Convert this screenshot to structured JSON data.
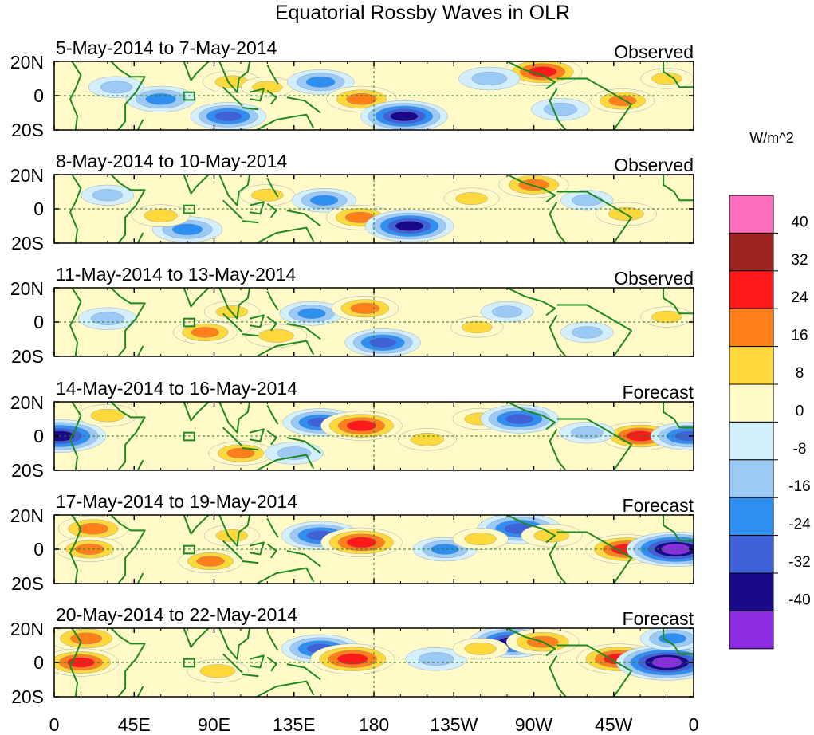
{
  "chart_data": {
    "type": "heatmap",
    "title": "Equatorial Rossby Waves in OLR",
    "variable": "OLR anomaly",
    "units": "W/m^2",
    "x_ticks": [
      "0",
      "45E",
      "90E",
      "135E",
      "180",
      "135W",
      "90W",
      "45W",
      "0"
    ],
    "y_ticks": [
      "20N",
      "0",
      "20S"
    ],
    "lon_range": [
      0,
      360
    ],
    "lat_range": [
      -20,
      20
    ],
    "colorbar": {
      "levels": [
        -40,
        -32,
        -24,
        -16,
        -8,
        0,
        8,
        16,
        24,
        32,
        40
      ],
      "labels": [
        "40",
        "32",
        "24",
        "16",
        "8",
        "0",
        "-8",
        "-16",
        "-24",
        "-32",
        "-40"
      ],
      "colors": [
        "#8b2be2",
        "#1a0a8a",
        "#3f62d8",
        "#2f8ff0",
        "#9ccaf5",
        "#d4effc",
        "#fffac8",
        "#ffd83b",
        "#ff7f1a",
        "#ff1a1a",
        "#9c2420",
        "#ff6fc0"
      ]
    },
    "panels": [
      {
        "period": "5-May-2014 to 7-May-2014",
        "kind": "Observed",
        "features": [
          {
            "lon": 60,
            "lat": -2,
            "value": -22
          },
          {
            "lon": 35,
            "lat": 5,
            "value": -12
          },
          {
            "lon": 100,
            "lat": 8,
            "value": 14
          },
          {
            "lon": 120,
            "lat": 5,
            "value": 10
          },
          {
            "lon": 98,
            "lat": -12,
            "value": -26
          },
          {
            "lon": 150,
            "lat": 8,
            "value": -20
          },
          {
            "lon": 173,
            "lat": -2,
            "value": 22
          },
          {
            "lon": 197,
            "lat": -12,
            "value": -34
          },
          {
            "lon": 275,
            "lat": 14,
            "value": 28
          },
          {
            "lon": 245,
            "lat": 10,
            "value": -16
          },
          {
            "lon": 320,
            "lat": -3,
            "value": 18
          },
          {
            "lon": 285,
            "lat": -8,
            "value": -14
          },
          {
            "lon": 345,
            "lat": 10,
            "value": 10
          }
        ]
      },
      {
        "period": "8-May-2014 to 10-May-2014",
        "kind": "Observed",
        "features": [
          {
            "lon": 75,
            "lat": -12,
            "value": -22
          },
          {
            "lon": 60,
            "lat": -4,
            "value": 14
          },
          {
            "lon": 120,
            "lat": 8,
            "value": 12
          },
          {
            "lon": 152,
            "lat": 5,
            "value": -18
          },
          {
            "lon": 172,
            "lat": -5,
            "value": 20
          },
          {
            "lon": 200,
            "lat": -10,
            "value": -35
          },
          {
            "lon": 270,
            "lat": 14,
            "value": 22
          },
          {
            "lon": 300,
            "lat": 5,
            "value": -10
          },
          {
            "lon": 322,
            "lat": -3,
            "value": 16
          },
          {
            "lon": 30,
            "lat": 8,
            "value": -10
          },
          {
            "lon": 235,
            "lat": 6,
            "value": 12
          }
        ]
      },
      {
        "period": "11-May-2014 to 13-May-2014",
        "kind": "Observed",
        "features": [
          {
            "lon": 85,
            "lat": -6,
            "value": 18
          },
          {
            "lon": 100,
            "lat": 6,
            "value": 12
          },
          {
            "lon": 125,
            "lat": -8,
            "value": 16
          },
          {
            "lon": 145,
            "lat": 5,
            "value": -18
          },
          {
            "lon": 175,
            "lat": 8,
            "value": 20
          },
          {
            "lon": 185,
            "lat": -12,
            "value": -26
          },
          {
            "lon": 30,
            "lat": 2,
            "value": -14
          },
          {
            "lon": 238,
            "lat": -3,
            "value": 10
          },
          {
            "lon": 255,
            "lat": 6,
            "value": -10
          },
          {
            "lon": 300,
            "lat": -6,
            "value": -10
          },
          {
            "lon": 345,
            "lat": 3,
            "value": 10
          }
        ]
      },
      {
        "period": "14-May-2014 to 16-May-2014",
        "kind": "Forecast",
        "features": [
          {
            "lon": 3,
            "lat": 0,
            "value": -38
          },
          {
            "lon": 30,
            "lat": 12,
            "value": 14
          },
          {
            "lon": 150,
            "lat": 8,
            "value": -26
          },
          {
            "lon": 173,
            "lat": 6,
            "value": 30
          },
          {
            "lon": 105,
            "lat": -10,
            "value": 18
          },
          {
            "lon": 135,
            "lat": -10,
            "value": -14
          },
          {
            "lon": 240,
            "lat": 10,
            "value": 12
          },
          {
            "lon": 262,
            "lat": 10,
            "value": -28
          },
          {
            "lon": 330,
            "lat": 0,
            "value": 28
          },
          {
            "lon": 357,
            "lat": 0,
            "value": -26
          },
          {
            "lon": 210,
            "lat": -2,
            "value": 14
          },
          {
            "lon": 300,
            "lat": 2,
            "value": -12
          }
        ]
      },
      {
        "period": "17-May-2014 to 19-May-2014",
        "kind": "Forecast",
        "features": [
          {
            "lon": 22,
            "lat": 12,
            "value": 22
          },
          {
            "lon": 20,
            "lat": 0,
            "value": 20
          },
          {
            "lon": 88,
            "lat": -7,
            "value": 18
          },
          {
            "lon": 150,
            "lat": 8,
            "value": -28
          },
          {
            "lon": 173,
            "lat": 4,
            "value": 30
          },
          {
            "lon": 220,
            "lat": 0,
            "value": -18
          },
          {
            "lon": 262,
            "lat": 12,
            "value": -32
          },
          {
            "lon": 280,
            "lat": 8,
            "value": 16
          },
          {
            "lon": 322,
            "lat": 0,
            "value": 30
          },
          {
            "lon": 350,
            "lat": 0,
            "value": -42
          },
          {
            "lon": 240,
            "lat": 6,
            "value": 12
          },
          {
            "lon": 100,
            "lat": 8,
            "value": 12
          }
        ]
      },
      {
        "period": "20-May-2014 to 22-May-2014",
        "kind": "Forecast",
        "features": [
          {
            "lon": 18,
            "lat": 14,
            "value": 24
          },
          {
            "lon": 15,
            "lat": 0,
            "value": 26
          },
          {
            "lon": 150,
            "lat": 8,
            "value": -28
          },
          {
            "lon": 168,
            "lat": 2,
            "value": 32
          },
          {
            "lon": 92,
            "lat": -5,
            "value": 16
          },
          {
            "lon": 215,
            "lat": 2,
            "value": -16
          },
          {
            "lon": 258,
            "lat": 12,
            "value": -34
          },
          {
            "lon": 275,
            "lat": 12,
            "value": 24
          },
          {
            "lon": 318,
            "lat": 2,
            "value": 32
          },
          {
            "lon": 345,
            "lat": 0,
            "value": -44
          },
          {
            "lon": 348,
            "lat": 14,
            "value": -18
          },
          {
            "lon": 240,
            "lat": 8,
            "value": 12
          }
        ]
      }
    ]
  }
}
